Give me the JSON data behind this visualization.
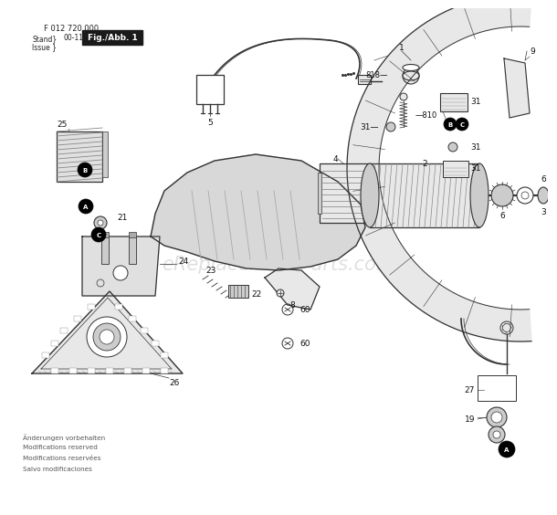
{
  "bg_color": "#ffffff",
  "header_line1": "F 012 720 000",
  "header_stand": "Stand",
  "header_issue": "Issue",
  "header_date": "00-11-13",
  "header_fig": "Fig./Abb. 1",
  "fig_box_color": "#1a1a1a",
  "fig_text_color": "#ffffff",
  "watermark": "eReplacementParts.com",
  "watermark_color": "#bbbbbb",
  "watermark_alpha": 0.45,
  "footer_lines": [
    "Änderungen vorbehalten",
    "Modifications reserved",
    "Modifications reservées",
    "Salvo modificaciones"
  ],
  "footer_color": "#555555",
  "line_color": "#333333",
  "fill_light": "#e8e8e8",
  "fill_mid": "#cccccc",
  "fill_dark": "#aaaaaa"
}
